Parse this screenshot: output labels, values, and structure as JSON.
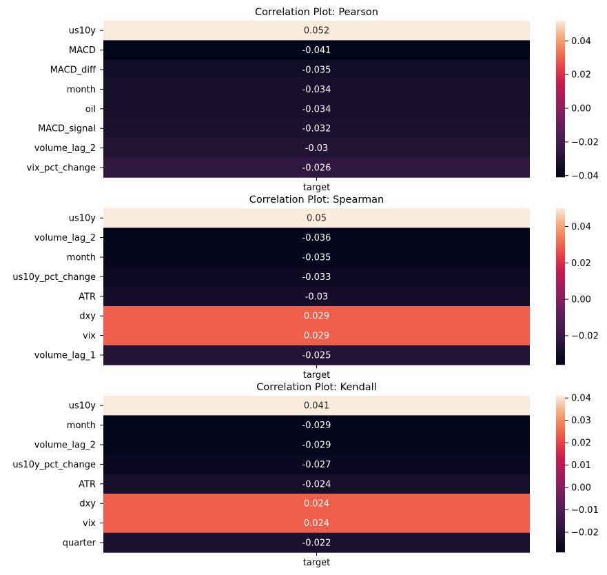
{
  "chart_data": [
    {
      "type": "heatmap",
      "title": "Correlation Plot: Pearson",
      "x_categories": [
        "target"
      ],
      "y_categories": [
        "us10y",
        "MACD",
        "MACD_diff",
        "month",
        "oil",
        "MACD_signal",
        "volume_lag_2",
        "vix_pct_change"
      ],
      "values": [
        0.052,
        -0.041,
        -0.035,
        -0.034,
        -0.034,
        -0.032,
        -0.03,
        -0.026
      ],
      "cell_labels": [
        "0.052",
        "-0.041",
        "-0.035",
        "-0.034",
        "-0.034",
        "-0.032",
        "-0.03",
        "-0.026"
      ],
      "colorbar": {
        "vmin": -0.041,
        "vmax": 0.052,
        "ticks": [
          0.04,
          0.02,
          0.0,
          -0.02,
          -0.04
        ],
        "tick_labels": [
          "0.04",
          "0.02",
          "0.00",
          "−0.02",
          "−0.04"
        ]
      },
      "colormap": "rocket"
    },
    {
      "type": "heatmap",
      "title": "Correlation Plot: Spearman",
      "x_categories": [
        "target"
      ],
      "y_categories": [
        "us10y",
        "volume_lag_2",
        "month",
        "us10y_pct_change",
        "ATR",
        "dxy",
        "vix",
        "volume_lag_1"
      ],
      "values": [
        0.05,
        -0.036,
        -0.035,
        -0.033,
        -0.03,
        0.029,
        0.029,
        -0.025
      ],
      "cell_labels": [
        "0.05",
        "-0.036",
        "-0.035",
        "-0.033",
        "-0.03",
        "0.029",
        "0.029",
        "-0.025"
      ],
      "colorbar": {
        "vmin": -0.036,
        "vmax": 0.05,
        "ticks": [
          0.04,
          0.02,
          0.0,
          -0.02
        ],
        "tick_labels": [
          "0.04",
          "0.02",
          "0.00",
          "−0.02"
        ]
      },
      "colormap": "rocket"
    },
    {
      "type": "heatmap",
      "title": "Correlation Plot: Kendall",
      "x_categories": [
        "target"
      ],
      "y_categories": [
        "us10y",
        "month",
        "volume_lag_2",
        "us10y_pct_change",
        "ATR",
        "dxy",
        "vix",
        "quarter"
      ],
      "values": [
        0.041,
        -0.029,
        -0.029,
        -0.027,
        -0.024,
        0.024,
        0.024,
        -0.022
      ],
      "cell_labels": [
        "0.041",
        "-0.029",
        "-0.029",
        "-0.027",
        "-0.024",
        "0.024",
        "0.024",
        "-0.022"
      ],
      "colorbar": {
        "vmin": -0.029,
        "vmax": 0.041,
        "ticks": [
          0.04,
          0.03,
          0.02,
          0.01,
          0.0,
          -0.01,
          -0.02
        ],
        "tick_labels": [
          "0.04",
          "0.03",
          "0.02",
          "0.01",
          "0.00",
          "−0.01",
          "−0.02"
        ]
      },
      "colormap": "rocket"
    }
  ]
}
